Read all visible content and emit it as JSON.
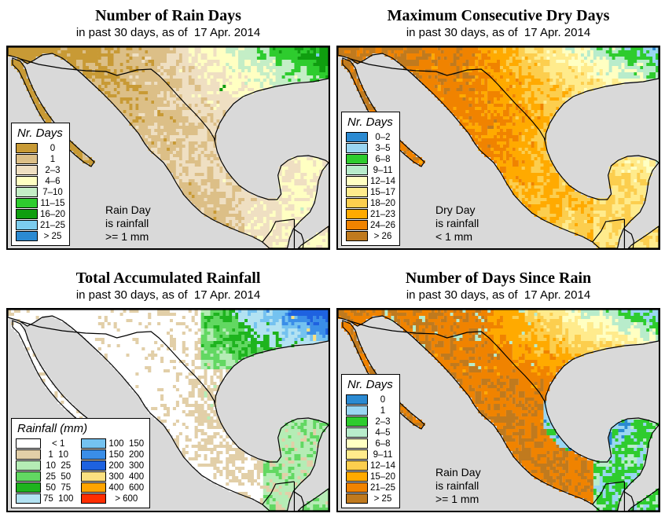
{
  "page": {
    "background": "#ffffff"
  },
  "map_colors": {
    "sea": "#d9d9d9",
    "outline": "#000000",
    "frame": "#000000"
  },
  "panels": [
    {
      "id": "rain-days",
      "title": "Number of Rain Days",
      "subtitle": "in past 30 days, as of  17 Apr. 2014",
      "note": "Rain Day\nis rainfall\n>= 1 mm",
      "legend": {
        "title": "Nr. Days",
        "columns": [
          [
            {
              "label": "0",
              "color": "#c89a35"
            },
            {
              "label": "1",
              "color": "#dcbf87"
            },
            {
              "label": "2–3",
              "color": "#efdfc2"
            },
            {
              "label": "4–6",
              "color": "#ffffc2"
            },
            {
              "label": "7–10",
              "color": "#c4eec6"
            },
            {
              "label": "11–15",
              "color": "#2ecc2e"
            },
            {
              "label": "16–20",
              "color": "#0f9e0f"
            },
            {
              "label": "21–25",
              "color": "#7cccee"
            },
            {
              "label": "> 25",
              "color": "#2b8ad2"
            }
          ]
        ]
      }
    },
    {
      "id": "dry-days",
      "title": "Maximum Consecutive Dry Days",
      "subtitle": "in past 30 days, as of  17 Apr. 2014",
      "note": "Dry Day\nis rainfall\n< 1 mm",
      "legend": {
        "title": "Nr. Days",
        "columns": [
          [
            {
              "label": "0–2",
              "color": "#2b8ad2"
            },
            {
              "label": "3–5",
              "color": "#9ad6f2"
            },
            {
              "label": "6–8",
              "color": "#2ecc2e"
            },
            {
              "label": "9–11",
              "color": "#b8eccb"
            },
            {
              "label": "12–14",
              "color": "#ffffc2"
            },
            {
              "label": "15–17",
              "color": "#ffeb8c"
            },
            {
              "label": "18–20",
              "color": "#fcce4e"
            },
            {
              "label": "21–23",
              "color": "#ffaa00"
            },
            {
              "label": "24–26",
              "color": "#f08300"
            },
            {
              "label": "> 26",
              "color": "#c07a1e"
            }
          ]
        ]
      }
    },
    {
      "id": "accumulated-rainfall",
      "title": "Total Accumulated Rainfall",
      "subtitle": "in past 30 days, as of  17 Apr. 2014",
      "note": "",
      "legend": {
        "title": "Rainfall (mm)",
        "columns": [
          [
            {
              "label": "< 1",
              "color": "#ffffff"
            },
            {
              "label": "1  10",
              "color": "#e2cfa8"
            },
            {
              "label": "10  25",
              "color": "#b5ecb5"
            },
            {
              "label": "25  50",
              "color": "#62d862"
            },
            {
              "label": "50  75",
              "color": "#1eb41e"
            },
            {
              "label": "75  100",
              "color": "#b2e2f2"
            }
          ],
          [
            {
              "label": "100  150",
              "color": "#74c2f0"
            },
            {
              "label": "150  200",
              "color": "#3a8ee8"
            },
            {
              "label": "200  300",
              "color": "#1e62e0"
            },
            {
              "label": "300  400",
              "color": "#fae080"
            },
            {
              "label": "400  600",
              "color": "#ffa400"
            },
            {
              "label": "> 600",
              "color": "#ff2e00"
            }
          ]
        ]
      }
    },
    {
      "id": "days-since-rain",
      "title": "Number of Days Since Rain",
      "subtitle": "in past 30 days, as of  17 Apr. 2014",
      "note": "Rain Day\nis rainfall\n>= 1 mm",
      "legend": {
        "title": "Nr. Days",
        "columns": [
          [
            {
              "label": "0",
              "color": "#2b8ad2"
            },
            {
              "label": "1",
              "color": "#9ad6f2"
            },
            {
              "label": "2–3",
              "color": "#2ecc2e"
            },
            {
              "label": "4–5",
              "color": "#b8eccb"
            },
            {
              "label": "6–8",
              "color": "#ffffc2"
            },
            {
              "label": "9–11",
              "color": "#ffeb8c"
            },
            {
              "label": "12–14",
              "color": "#fcce4e"
            },
            {
              "label": "15–20",
              "color": "#ffaa00"
            },
            {
              "label": "21–25",
              "color": "#f08300"
            },
            {
              "label": "> 25",
              "color": "#c07a1e"
            }
          ]
        ]
      }
    }
  ],
  "chart_data": [
    {
      "type": "heatmap",
      "title": "Number of Rain Days",
      "subtitle": "in past 30 days, as of  17 Apr. 2014",
      "region": "Mexico and southern United States",
      "legend_title": "Nr. Days",
      "classes": [
        "0",
        "1",
        "2–3",
        "4–6",
        "7–10",
        "11–15",
        "16–20",
        "21–25",
        "> 25"
      ],
      "class_colors": [
        "#c89a35",
        "#dcbf87",
        "#efdfc2",
        "#ffffc2",
        "#c4eec6",
        "#2ecc2e",
        "#0f9e0f",
        "#7cccee",
        "#2b8ad2"
      ],
      "annotation": "Rain Day is rainfall >= 1 mm",
      "pattern": "Northwest Mexico and Baja 0–1 rain days (tan/brown); central Mexico 2–6 (cream); northeast US/Texas-Louisiana 7–20 (greens); scattered blue >25 specks"
    },
    {
      "type": "heatmap",
      "title": "Maximum Consecutive Dry Days",
      "subtitle": "in past 30 days, as of  17 Apr. 2014",
      "region": "Mexico and southern United States",
      "legend_title": "Nr. Days",
      "classes": [
        "0–2",
        "3–5",
        "6–8",
        "9–11",
        "12–14",
        "15–17",
        "18–20",
        "21–23",
        "24–26",
        "> 26"
      ],
      "class_colors": [
        "#2b8ad2",
        "#9ad6f2",
        "#2ecc2e",
        "#b8eccb",
        "#ffffc2",
        "#ffeb8c",
        "#fcce4e",
        "#ffaa00",
        "#f08300",
        "#c07a1e"
      ],
      "annotation": "Dry Day is rainfall < 1 mm",
      "pattern": "North and central Mexico >26 consecutive dry days (brown/orange); northeast US green/blue 0–11; east-central and Yucatan yellows 12–20"
    },
    {
      "type": "heatmap",
      "title": "Total Accumulated Rainfall",
      "subtitle": "in past 30 days, as of  17 Apr. 2014",
      "region": "Mexico and southern United States",
      "legend_title": "Rainfall (mm)",
      "classes": [
        "< 1",
        "1 10",
        "10 25",
        "25 50",
        "50 75",
        "75 100",
        "100 150",
        "150 200",
        "200 300",
        "300 400",
        "400 600",
        "> 600"
      ],
      "class_colors": [
        "#ffffff",
        "#e2cfa8",
        "#b5ecb5",
        "#62d862",
        "#1eb41e",
        "#b2e2f2",
        "#74c2f0",
        "#3a8ee8",
        "#1e62e0",
        "#fae080",
        "#ffa400",
        "#ff2e00"
      ],
      "annotation": "",
      "pattern": "Most of Mexico < 1 mm (white) with tan 1–10 specks; green 10–75 band along east coast and Yucatan; blue 100–300 with yellow 300–400 blobs in Texas/Louisiana corner"
    },
    {
      "type": "heatmap",
      "title": "Number of Days Since Rain",
      "subtitle": "in past 30 days, as of  17 Apr. 2014",
      "region": "Mexico and southern United States",
      "legend_title": "Nr. Days",
      "classes": [
        "0",
        "1",
        "2–3",
        "4–5",
        "6–8",
        "9–11",
        "12–14",
        "15–20",
        "21–25",
        "> 25"
      ],
      "class_colors": [
        "#2b8ad2",
        "#9ad6f2",
        "#2ecc2e",
        "#b8eccb",
        "#ffffc2",
        "#ffeb8c",
        "#fcce4e",
        "#ffaa00",
        "#f08300",
        "#c07a1e"
      ],
      "annotation": "Rain Day is rainfall >= 1 mm",
      "pattern": "Northwest/central Mexico >25 days since rain (brown); northeast US green 2–3 and blue 0 near Gulf coast; blue/cyan band along Gulf coast and Yucatan"
    }
  ]
}
